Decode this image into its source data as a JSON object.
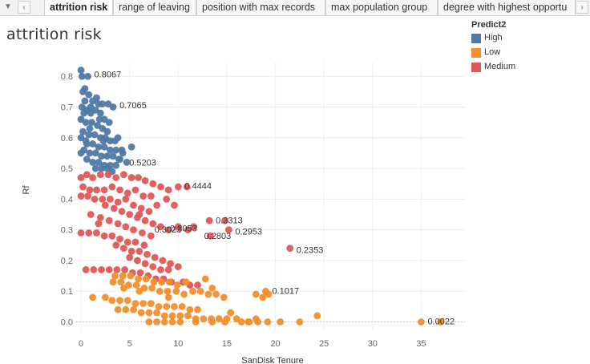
{
  "tabbar": {
    "menu_icon": "dropdown-triangle-icon",
    "prev_icon": "chevron-left-icon",
    "next_icon": "chevron-right-icon",
    "tabs": [
      {
        "label": "attrition risk",
        "active": true
      },
      {
        "label": "range of leaving",
        "active": false
      },
      {
        "label": "position with max records",
        "active": false
      },
      {
        "label": "max population group",
        "active": false
      },
      {
        "label": "degree with highest opportu",
        "active": false
      }
    ]
  },
  "sheet_title": "attrition risk",
  "legend": {
    "title": "Predict2",
    "items": [
      {
        "label": "High",
        "color": "#4e79a7"
      },
      {
        "label": "Low",
        "color": "#f28e2b"
      },
      {
        "label": "Medium",
        "color": "#e15759"
      }
    ]
  },
  "chart_data": {
    "type": "scatter",
    "title": "attrition risk",
    "xlabel": "SanDisk Tenure",
    "ylabel": "Rf",
    "xlim": [
      -0.5,
      39.5
    ],
    "ylim": [
      -0.03,
      0.845
    ],
    "x_ticks": [
      0,
      5,
      10,
      15,
      20,
      25,
      30,
      35
    ],
    "y_ticks": [
      0.0,
      0.1,
      0.2,
      0.3,
      0.4,
      0.5,
      0.6,
      0.7,
      0.8
    ],
    "grid": true,
    "legend_position": "top-right",
    "series": [
      {
        "name": "High",
        "color": "#4e79a7",
        "points": [
          [
            0.0,
            0.82
          ],
          [
            0.1,
            0.8
          ],
          [
            0.7,
            0.8
          ],
          [
            0.2,
            0.75
          ],
          [
            0.4,
            0.72
          ],
          [
            0.8,
            0.74
          ],
          [
            1.2,
            0.72
          ],
          [
            1.8,
            0.71
          ],
          [
            2.2,
            0.71
          ],
          [
            2.8,
            0.71
          ],
          [
            3.3,
            0.7
          ],
          [
            0.1,
            0.7
          ],
          [
            0.3,
            0.68
          ],
          [
            0.6,
            0.69
          ],
          [
            1.0,
            0.68
          ],
          [
            1.5,
            0.69
          ],
          [
            2.0,
            0.68
          ],
          [
            2.4,
            0.66
          ],
          [
            0.0,
            0.66
          ],
          [
            0.5,
            0.65
          ],
          [
            1.1,
            0.65
          ],
          [
            1.7,
            0.64
          ],
          [
            2.2,
            0.63
          ],
          [
            2.7,
            0.62
          ],
          [
            0.2,
            0.62
          ],
          [
            0.8,
            0.61
          ],
          [
            1.4,
            0.61
          ],
          [
            2.0,
            0.6
          ],
          [
            2.5,
            0.6
          ],
          [
            3.0,
            0.59
          ],
          [
            3.5,
            0.59
          ],
          [
            0.0,
            0.6
          ],
          [
            0.6,
            0.58
          ],
          [
            1.2,
            0.58
          ],
          [
            1.8,
            0.57
          ],
          [
            2.4,
            0.57
          ],
          [
            3.0,
            0.56
          ],
          [
            3.6,
            0.56
          ],
          [
            4.2,
            0.56
          ],
          [
            0.3,
            0.56
          ],
          [
            0.9,
            0.55
          ],
          [
            1.5,
            0.55
          ],
          [
            2.1,
            0.54
          ],
          [
            2.7,
            0.54
          ],
          [
            3.3,
            0.54
          ],
          [
            3.9,
            0.53
          ],
          [
            0.0,
            0.55
          ],
          [
            0.6,
            0.53
          ],
          [
            1.2,
            0.52
          ],
          [
            1.8,
            0.52
          ],
          [
            2.4,
            0.51
          ],
          [
            3.0,
            0.51
          ],
          [
            3.6,
            0.51
          ],
          [
            1.5,
            0.5
          ],
          [
            2.1,
            0.5
          ],
          [
            2.7,
            0.5
          ],
          [
            3.2,
            0.49
          ],
          [
            4.0,
            0.53
          ],
          [
            4.3,
            0.55
          ],
          [
            5.2,
            0.57
          ],
          [
            4.7,
            0.52
          ],
          [
            1.0,
            0.7
          ],
          [
            1.6,
            0.73
          ],
          [
            0.4,
            0.76
          ],
          [
            2.9,
            0.65
          ],
          [
            3.8,
            0.6
          ],
          [
            0.9,
            0.63
          ],
          [
            0.5,
            0.59
          ],
          [
            2.3,
            0.59
          ],
          [
            1.9,
            0.66
          ]
        ]
      },
      {
        "name": "Medium",
        "color": "#e15759",
        "points": [
          [
            0.0,
            0.47
          ],
          [
            0.6,
            0.48
          ],
          [
            1.2,
            0.47
          ],
          [
            2.0,
            0.48
          ],
          [
            2.8,
            0.48
          ],
          [
            3.6,
            0.47
          ],
          [
            4.4,
            0.48
          ],
          [
            5.2,
            0.47
          ],
          [
            5.9,
            0.47
          ],
          [
            6.6,
            0.46
          ],
          [
            7.4,
            0.45
          ],
          [
            8.2,
            0.44
          ],
          [
            9.0,
            0.43
          ],
          [
            10.0,
            0.44
          ],
          [
            0.2,
            0.44
          ],
          [
            0.9,
            0.43
          ],
          [
            1.6,
            0.43
          ],
          [
            2.4,
            0.43
          ],
          [
            3.2,
            0.44
          ],
          [
            4.0,
            0.43
          ],
          [
            4.8,
            0.42
          ],
          [
            5.6,
            0.43
          ],
          [
            6.4,
            0.41
          ],
          [
            7.2,
            0.41
          ],
          [
            0.0,
            0.41
          ],
          [
            0.7,
            0.41
          ],
          [
            1.4,
            0.4
          ],
          [
            2.2,
            0.4
          ],
          [
            3.0,
            0.4
          ],
          [
            3.8,
            0.39
          ],
          [
            4.6,
            0.4
          ],
          [
            5.4,
            0.38
          ],
          [
            6.2,
            0.37
          ],
          [
            7.0,
            0.36
          ],
          [
            2.5,
            0.38
          ],
          [
            3.4,
            0.37
          ],
          [
            4.2,
            0.36
          ],
          [
            5.0,
            0.35
          ],
          [
            5.8,
            0.34
          ],
          [
            6.6,
            0.33
          ],
          [
            7.4,
            0.32
          ],
          [
            8.2,
            0.31
          ],
          [
            9.0,
            0.3
          ],
          [
            10.0,
            0.31
          ],
          [
            11.0,
            0.3
          ],
          [
            13.2,
            0.33
          ],
          [
            14.8,
            0.33
          ],
          [
            15.2,
            0.3
          ],
          [
            13.3,
            0.28
          ],
          [
            2.0,
            0.34
          ],
          [
            2.9,
            0.33
          ],
          [
            3.8,
            0.32
          ],
          [
            4.6,
            0.31
          ],
          [
            5.4,
            0.3
          ],
          [
            6.3,
            0.29
          ],
          [
            7.2,
            0.28
          ],
          [
            0.0,
            0.29
          ],
          [
            0.8,
            0.29
          ],
          [
            1.6,
            0.29
          ],
          [
            2.4,
            0.28
          ],
          [
            3.2,
            0.28
          ],
          [
            4.0,
            0.27
          ],
          [
            4.8,
            0.26
          ],
          [
            5.6,
            0.26
          ],
          [
            6.5,
            0.25
          ],
          [
            3.6,
            0.25
          ],
          [
            4.4,
            0.24
          ],
          [
            5.2,
            0.23
          ],
          [
            6.0,
            0.23
          ],
          [
            6.8,
            0.22
          ],
          [
            7.6,
            0.21
          ],
          [
            8.4,
            0.2
          ],
          [
            9.2,
            0.19
          ],
          [
            10.0,
            0.18
          ],
          [
            5.0,
            0.21
          ],
          [
            5.8,
            0.2
          ],
          [
            6.6,
            0.19
          ],
          [
            7.4,
            0.18
          ],
          [
            8.2,
            0.17
          ],
          [
            9.0,
            0.17
          ],
          [
            0.5,
            0.17
          ],
          [
            1.3,
            0.17
          ],
          [
            2.1,
            0.17
          ],
          [
            2.9,
            0.17
          ],
          [
            3.7,
            0.17
          ],
          [
            4.5,
            0.17
          ],
          [
            5.3,
            0.16
          ],
          [
            6.1,
            0.16
          ],
          [
            6.9,
            0.15
          ],
          [
            7.7,
            0.14
          ],
          [
            8.5,
            0.14
          ],
          [
            9.3,
            0.13
          ],
          [
            10.5,
            0.13
          ],
          [
            11.2,
            0.12
          ],
          [
            12.0,
            0.12
          ],
          [
            21.5,
            0.24
          ],
          [
            8.8,
            0.4
          ],
          [
            9.6,
            0.38
          ],
          [
            10.9,
            0.44
          ],
          [
            1.0,
            0.35
          ],
          [
            1.8,
            0.32
          ],
          [
            6.0,
            0.35
          ],
          [
            7.8,
            0.38
          ],
          [
            11.6,
            0.31
          ]
        ]
      },
      {
        "name": "Low",
        "color": "#f28e2b",
        "points": [
          [
            3.5,
            0.15
          ],
          [
            4.3,
            0.15
          ],
          [
            5.1,
            0.15
          ],
          [
            5.9,
            0.14
          ],
          [
            6.7,
            0.14
          ],
          [
            7.5,
            0.13
          ],
          [
            8.3,
            0.13
          ],
          [
            9.1,
            0.13
          ],
          [
            9.9,
            0.12
          ],
          [
            3.3,
            0.13
          ],
          [
            4.1,
            0.13
          ],
          [
            4.9,
            0.12
          ],
          [
            5.7,
            0.12
          ],
          [
            6.5,
            0.11
          ],
          [
            7.3,
            0.11
          ],
          [
            8.1,
            0.1
          ],
          [
            8.9,
            0.1
          ],
          [
            9.8,
            0.1
          ],
          [
            10.6,
            0.09
          ],
          [
            11.5,
            0.1
          ],
          [
            12.3,
            0.1
          ],
          [
            13.1,
            0.09
          ],
          [
            13.9,
            0.09
          ],
          [
            14.7,
            0.08
          ],
          [
            1.2,
            0.08
          ],
          [
            2.5,
            0.08
          ],
          [
            3.2,
            0.07
          ],
          [
            4.0,
            0.07
          ],
          [
            4.8,
            0.07
          ],
          [
            5.6,
            0.06
          ],
          [
            6.4,
            0.06
          ],
          [
            7.2,
            0.06
          ],
          [
            8.0,
            0.05
          ],
          [
            8.8,
            0.05
          ],
          [
            9.6,
            0.05
          ],
          [
            10.4,
            0.05
          ],
          [
            11.2,
            0.04
          ],
          [
            12.0,
            0.04
          ],
          [
            3.8,
            0.04
          ],
          [
            4.6,
            0.04
          ],
          [
            5.4,
            0.04
          ],
          [
            6.2,
            0.03
          ],
          [
            7.0,
            0.03
          ],
          [
            7.8,
            0.03
          ],
          [
            8.6,
            0.02
          ],
          [
            9.4,
            0.02
          ],
          [
            10.2,
            0.02
          ],
          [
            11.0,
            0.02
          ],
          [
            11.8,
            0.01
          ],
          [
            12.6,
            0.01
          ],
          [
            13.4,
            0.01
          ],
          [
            14.2,
            0.01
          ],
          [
            15.0,
            0.01
          ],
          [
            16.0,
            0.01
          ],
          [
            7.0,
            0.0
          ],
          [
            7.8,
            0.0
          ],
          [
            8.6,
            0.0
          ],
          [
            9.4,
            0.0
          ],
          [
            10.2,
            0.0
          ],
          [
            11.8,
            0.0
          ],
          [
            13.5,
            0.0
          ],
          [
            14.8,
            0.0
          ],
          [
            16.5,
            0.0
          ],
          [
            17.3,
            0.0
          ],
          [
            18.2,
            0.0
          ],
          [
            19.2,
            0.0
          ],
          [
            20.5,
            0.0
          ],
          [
            22.5,
            0.0
          ],
          [
            24.3,
            0.02
          ],
          [
            18.0,
            0.01
          ],
          [
            15.4,
            0.03
          ],
          [
            17.2,
            0.0
          ],
          [
            18.0,
            0.09
          ],
          [
            18.7,
            0.08
          ],
          [
            19.3,
            0.09
          ],
          [
            19.0,
            0.1
          ],
          [
            12.8,
            0.14
          ],
          [
            13.5,
            0.11
          ],
          [
            35.0,
            0.0
          ],
          [
            37.0,
            0.0
          ],
          [
            6.0,
            0.1
          ],
          [
            10.8,
            0.13
          ],
          [
            4.4,
            0.11
          ],
          [
            9.0,
            0.08
          ]
        ]
      }
    ],
    "annotations": [
      {
        "x": 0.7,
        "y": 0.8067,
        "text": "0.8067"
      },
      {
        "x": 3.3,
        "y": 0.7065,
        "text": "0.7065"
      },
      {
        "x": 4.3,
        "y": 0.5203,
        "text": "0.5203"
      },
      {
        "x": 10.0,
        "y": 0.4444,
        "text": "0.4444"
      },
      {
        "x": 13.2,
        "y": 0.3313,
        "text": "0.3313"
      },
      {
        "x": 8.5,
        "y": 0.3053,
        "text": "0.3053"
      },
      {
        "x": 15.2,
        "y": 0.2953,
        "text": "0.2953"
      },
      {
        "x": 6.9,
        "y": 0.3023,
        "text": "0.3023"
      },
      {
        "x": 12.0,
        "y": 0.2803,
        "text": "0.2803"
      },
      {
        "x": 21.5,
        "y": 0.2353,
        "text": "0.2353"
      },
      {
        "x": 19.0,
        "y": 0.1017,
        "text": "0.1017"
      },
      {
        "x": 35.0,
        "y": 0.0022,
        "text": "0.0022"
      }
    ]
  }
}
